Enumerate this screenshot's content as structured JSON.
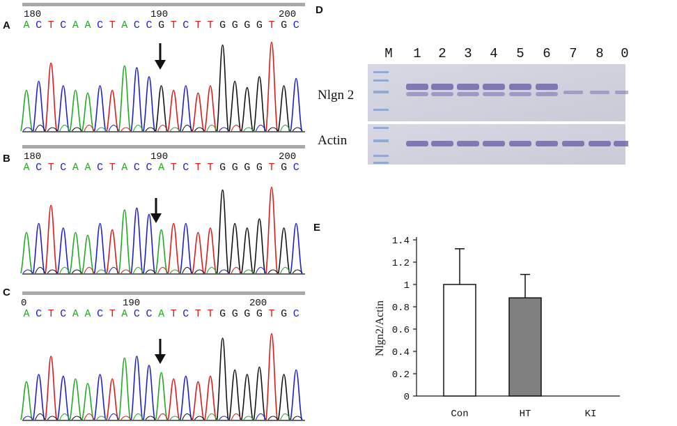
{
  "panels": {
    "a": {
      "label": "A",
      "ruler": [
        "180",
        "190",
        "200"
      ],
      "sequence": "ACTCAACTACCGTCTTGGGGTGC"
    },
    "b": {
      "label": "B",
      "ruler": [
        "180",
        "190",
        "200"
      ],
      "sequence": "ACTCAACTACCATCTTGGGGTGC"
    },
    "c": {
      "label": "C",
      "ruler": [
        "0",
        "190",
        "200"
      ],
      "sequence": "ACTCAACTACCATCTTGGGGTGC"
    },
    "d": {
      "label": "D",
      "lanes": [
        "M",
        "1",
        "2",
        "3",
        "4",
        "5",
        "6",
        "7",
        "8",
        "0"
      ],
      "row_labels": [
        "Nlgn 2",
        "Actin"
      ]
    },
    "e": {
      "label": "E"
    }
  },
  "base_colors": {
    "A": "#1faa1f",
    "C": "#1d1dd6",
    "G": "#111111",
    "T": "#e01818"
  },
  "chart_data": {
    "type": "bar",
    "categories": [
      "Con",
      "HT",
      "KI"
    ],
    "values": [
      1.0,
      0.88,
      0
    ],
    "errors": [
      0.32,
      0.21,
      0
    ],
    "bar_colors": [
      "#ffffff",
      "#808080",
      "#ffffff"
    ],
    "ylabel": "Nlgn2/Actin",
    "ylim": [
      0,
      1.4
    ],
    "yticks": [
      "0",
      "0.2",
      "0.4",
      "0.6",
      "0.8",
      "1",
      "1.2",
      "1.4"
    ]
  }
}
